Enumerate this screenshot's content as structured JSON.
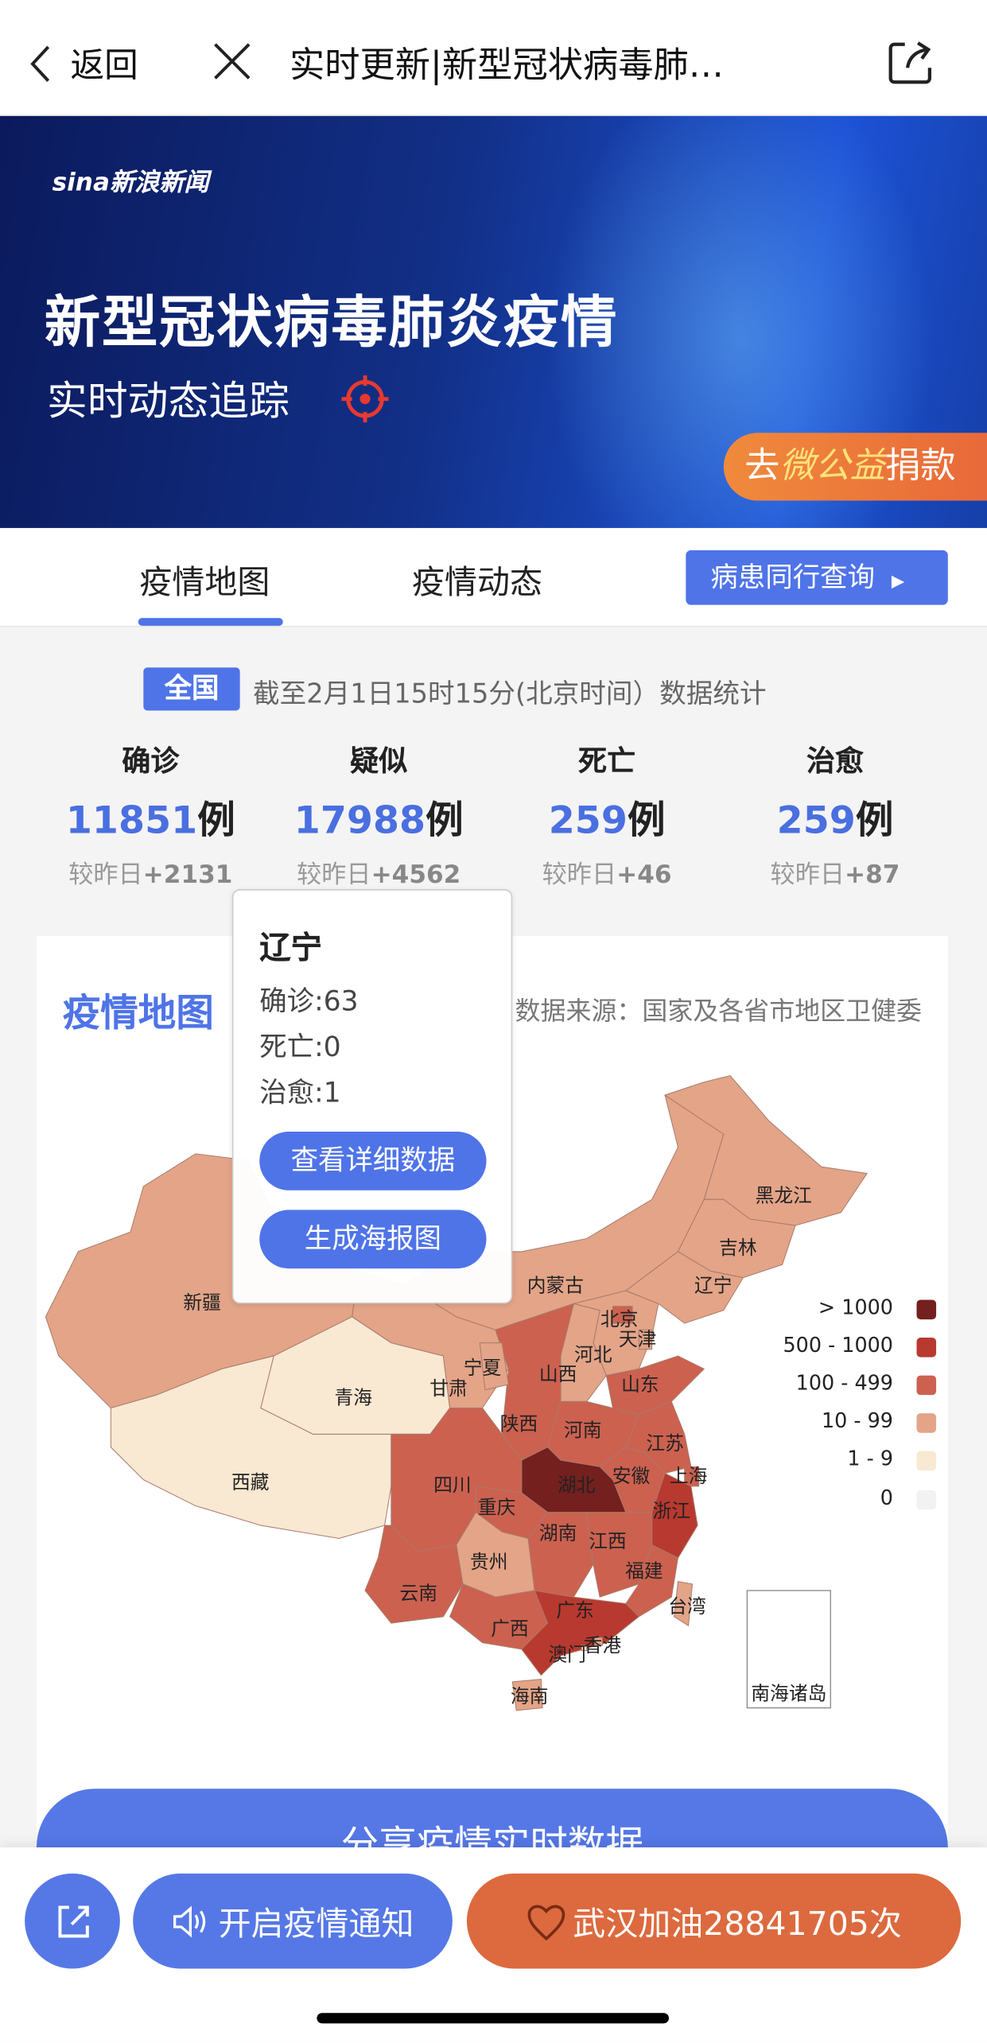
{
  "header": {
    "back_label": "返回",
    "title": "实时更新|新型冠状病毒肺…"
  },
  "banner": {
    "logo": "sina新浪新闻",
    "title": "新型冠状病毒肺炎疫情",
    "subtitle": "实时动态追踪",
    "donate": {
      "prefix": "去",
      "brand": "微公益",
      "suffix": "捐款"
    }
  },
  "tabs": {
    "items": [
      {
        "label": "疫情地图",
        "active": true
      },
      {
        "label": "疫情动态",
        "active": false
      }
    ],
    "query_button": "病患同行查询"
  },
  "summary": {
    "scope_badge": "全国",
    "as_of": "截至2月1日15时15分(北京时间）数据统计",
    "stats": [
      {
        "label": "确诊",
        "value": "11851",
        "unit": "例",
        "compare_prefix": "较昨日",
        "delta": "+2131"
      },
      {
        "label": "疑似",
        "value": "17988",
        "unit": "例",
        "compare_prefix": "较昨日",
        "delta": "+4562"
      },
      {
        "label": "死亡",
        "value": "259",
        "unit": "例",
        "compare_prefix": "较昨日",
        "delta": "+46"
      },
      {
        "label": "治愈",
        "value": "259",
        "unit": "例",
        "compare_prefix": "较昨日",
        "delta": "+87"
      }
    ]
  },
  "map": {
    "title": "疫情地图",
    "source": "数据来源：国家及各省市地区卫健委",
    "legend": [
      {
        "label": "> 1000",
        "color": "#74201e"
      },
      {
        "label": "500 - 1000",
        "color": "#b8392f"
      },
      {
        "label": "100 - 499",
        "color": "#cc6150"
      },
      {
        "label": "10 - 99",
        "color": "#e3a488"
      },
      {
        "label": "1 - 9",
        "color": "#f9e8d2"
      },
      {
        "label": "0",
        "color": "#f2f2f2"
      }
    ],
    "provinces": [
      {
        "name": "新疆",
        "level": 3
      },
      {
        "name": "西藏",
        "level": 4
      },
      {
        "name": "青海",
        "level": 4
      },
      {
        "name": "甘肃",
        "level": 3
      },
      {
        "name": "内蒙古",
        "level": 3
      },
      {
        "name": "黑龙江",
        "level": 3
      },
      {
        "name": "吉林",
        "level": 3
      },
      {
        "name": "辽宁",
        "level": 3
      },
      {
        "name": "河北",
        "level": 3
      },
      {
        "name": "北京",
        "level": 2
      },
      {
        "name": "天津",
        "level": 3
      },
      {
        "name": "山西",
        "level": 3
      },
      {
        "name": "陕西",
        "level": 2
      },
      {
        "name": "宁夏",
        "level": 3
      },
      {
        "name": "山东",
        "level": 2
      },
      {
        "name": "河南",
        "level": 2
      },
      {
        "name": "江苏",
        "level": 2
      },
      {
        "name": "安徽",
        "level": 2
      },
      {
        "name": "上海",
        "level": 2
      },
      {
        "name": "湖北",
        "level": 0
      },
      {
        "name": "重庆",
        "level": 2
      },
      {
        "name": "四川",
        "level": 2
      },
      {
        "name": "浙江",
        "level": 1
      },
      {
        "name": "湖南",
        "level": 2
      },
      {
        "name": "江西",
        "level": 2
      },
      {
        "name": "福建",
        "level": 2
      },
      {
        "name": "贵州",
        "level": 3
      },
      {
        "name": "云南",
        "level": 2
      },
      {
        "name": "广西",
        "level": 2
      },
      {
        "name": "广东",
        "level": 1
      },
      {
        "name": "海南",
        "level": 3
      },
      {
        "name": "台湾",
        "level": 3
      },
      {
        "name": "香港",
        "level": 3
      },
      {
        "name": "澳门",
        "level": 4
      }
    ],
    "inset_label": "南海诸岛",
    "tooltip": {
      "province": "辽宁",
      "confirmed": "确诊:63",
      "deaths": "死亡:0",
      "cured": "治愈:1",
      "detail_button": "查看详细数据",
      "poster_button": "生成海报图"
    }
  },
  "share_button": "分享疫情实时数据",
  "bottom_bar": {
    "notify": "开启疫情通知",
    "cheer": "武汉加油28841705次"
  },
  "colors": {
    "accent": "#4f74e8",
    "cheer": "#dc6a3e"
  }
}
